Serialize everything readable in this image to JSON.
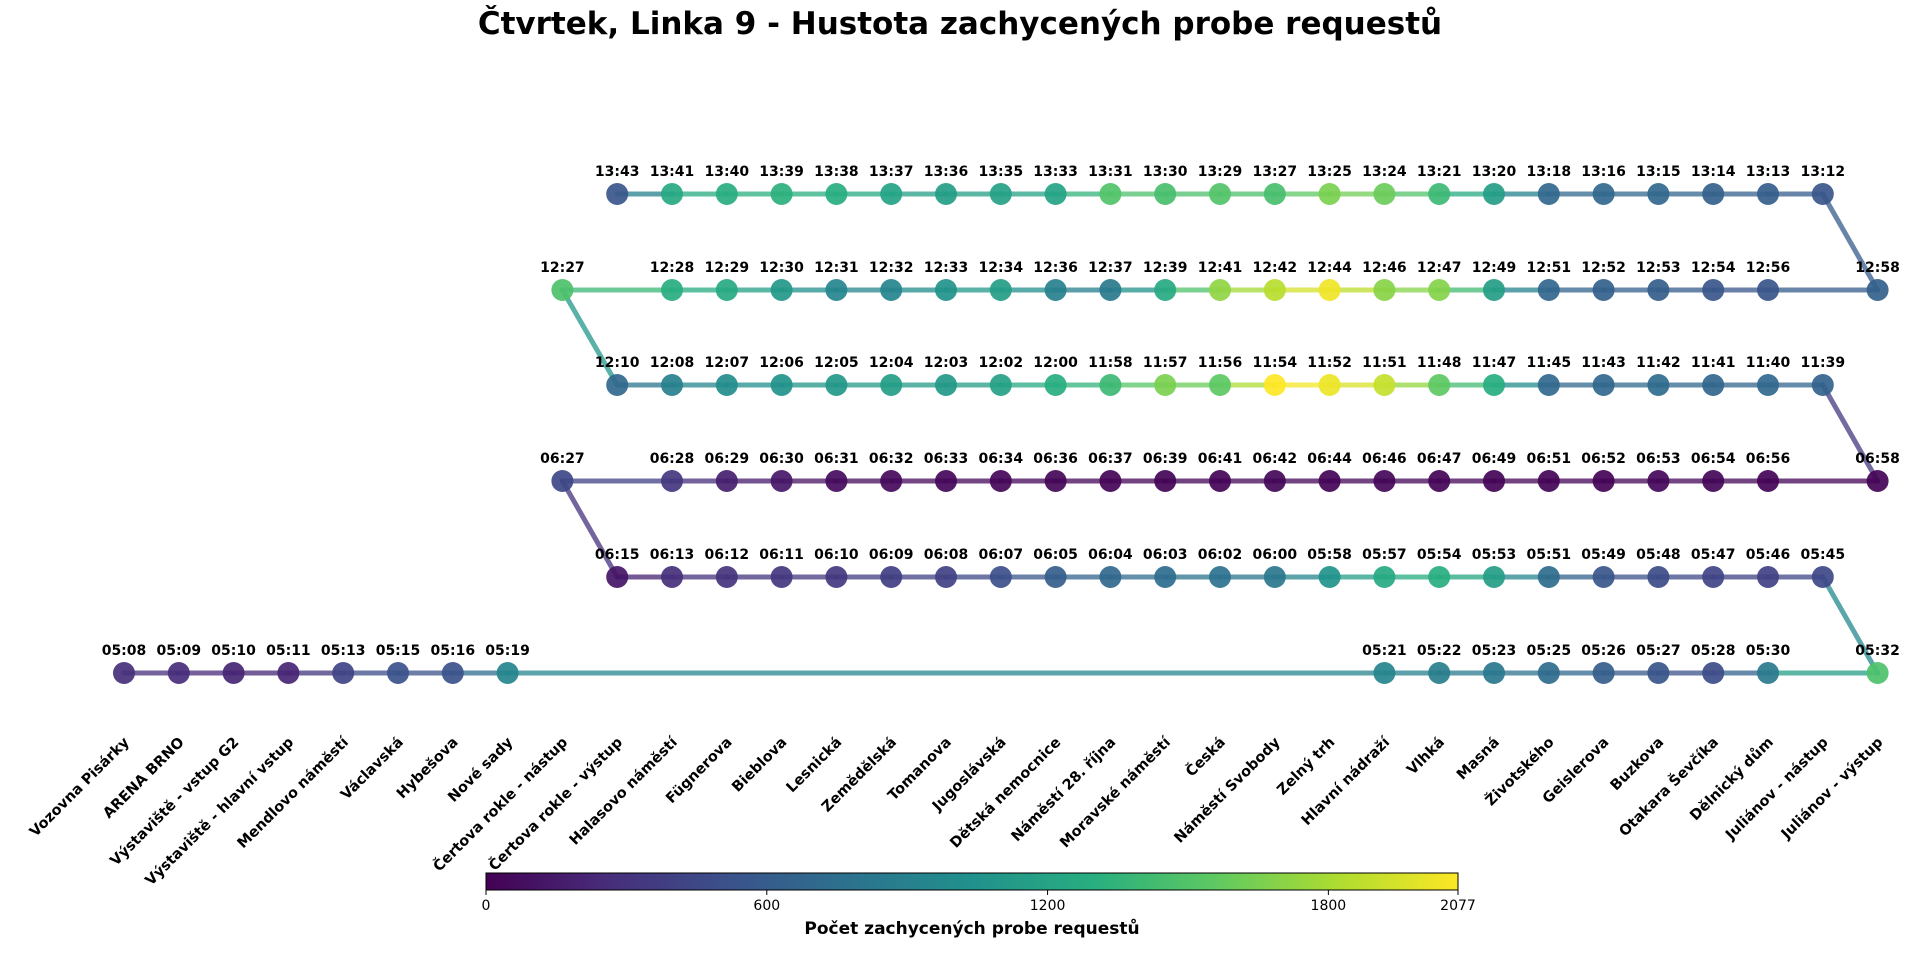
{
  "chart_data": {
    "type": "scatter",
    "title": "Čtvrtek, Linka 9 - Hustota zachycených probe requestů",
    "colormap": "viridis",
    "colorbar": {
      "label": "Počet zachycených probe requestů",
      "min": 0,
      "max": 2077,
      "ticks": [
        "0",
        "600",
        "1200",
        "1800",
        "2077"
      ]
    },
    "stops": [
      "Vozovna Pisárky",
      "ARENA BRNO",
      "Výstaviště - vstup G2",
      "Výstaviště - hlavní vstup",
      "Mendlovo náměstí",
      "Václavská",
      "Hybešova",
      "Nové sady",
      "Čertova rokle - nástup",
      "Čertova rokle - výstup",
      "Halasovo náměstí",
      "Fügnerova",
      "Bieblova",
      "Lesnická",
      "Zemědělská",
      "Tomanova",
      "Jugoslávská",
      "Dětská nemocnice",
      "Náměstí 28. října",
      "Moravské náměstí",
      "Česká",
      "Náměstí Svobody",
      "Zelný trh",
      "Hlavní nádraží",
      "Vlhká",
      "Masná",
      "Životského",
      "Geislerova",
      "Buzkova",
      "Otakara Ševčíka",
      "Dělnický dům",
      "Juliánov - nástup",
      "Juliánov - výstup"
    ],
    "trips": [
      {
        "points": [
          {
            "stop": 0,
            "time": "05:08",
            "value": 280
          },
          {
            "stop": 1,
            "time": "05:09",
            "value": 270
          },
          {
            "stop": 2,
            "time": "05:10",
            "value": 220
          },
          {
            "stop": 3,
            "time": "05:11",
            "value": 210
          },
          {
            "stop": 4,
            "time": "05:13",
            "value": 420
          },
          {
            "stop": 5,
            "time": "05:15",
            "value": 520
          },
          {
            "stop": 6,
            "time": "05:16",
            "value": 520
          },
          {
            "stop": 7,
            "time": "05:19",
            "value": 950
          },
          {
            "stop": 23,
            "time": "05:21",
            "value": 950
          },
          {
            "stop": 24,
            "time": "05:22",
            "value": 880
          },
          {
            "stop": 25,
            "time": "05:23",
            "value": 820
          },
          {
            "stop": 26,
            "time": "05:25",
            "value": 720
          },
          {
            "stop": 27,
            "time": "05:26",
            "value": 620
          },
          {
            "stop": 28,
            "time": "05:27",
            "value": 540
          },
          {
            "stop": 29,
            "time": "05:28",
            "value": 480
          },
          {
            "stop": 30,
            "time": "05:30",
            "value": 850
          },
          {
            "stop": 32,
            "time": "05:32",
            "value": 1480
          }
        ]
      },
      {
        "points": [
          {
            "stop": 31,
            "time": "05:45",
            "value": 450
          },
          {
            "stop": 30,
            "time": "05:46",
            "value": 400
          },
          {
            "stop": 29,
            "time": "05:47",
            "value": 420
          },
          {
            "stop": 28,
            "time": "05:48",
            "value": 480
          },
          {
            "stop": 27,
            "time": "05:49",
            "value": 560
          },
          {
            "stop": 26,
            "time": "05:51",
            "value": 720
          },
          {
            "stop": 25,
            "time": "05:53",
            "value": 1150
          },
          {
            "stop": 24,
            "time": "05:54",
            "value": 1300
          },
          {
            "stop": 23,
            "time": "05:57",
            "value": 1250
          },
          {
            "stop": 22,
            "time": "05:58",
            "value": 1050
          },
          {
            "stop": 21,
            "time": "06:00",
            "value": 820
          },
          {
            "stop": 20,
            "time": "06:02",
            "value": 780
          },
          {
            "stop": 19,
            "time": "06:03",
            "value": 740
          },
          {
            "stop": 18,
            "time": "06:04",
            "value": 700
          },
          {
            "stop": 17,
            "time": "06:05",
            "value": 620
          },
          {
            "stop": 16,
            "time": "06:07",
            "value": 500
          },
          {
            "stop": 15,
            "time": "06:08",
            "value": 400
          },
          {
            "stop": 14,
            "time": "06:09",
            "value": 380
          },
          {
            "stop": 13,
            "time": "06:10",
            "value": 340
          },
          {
            "stop": 12,
            "time": "06:11",
            "value": 330
          },
          {
            "stop": 11,
            "time": "06:12",
            "value": 300
          },
          {
            "stop": 10,
            "time": "06:13",
            "value": 280
          },
          {
            "stop": 9,
            "time": "06:15",
            "value": 120
          }
        ]
      },
      {
        "points": [
          {
            "stop": 8,
            "time": "06:27",
            "value": 450
          },
          {
            "stop": 10,
            "time": "06:28",
            "value": 330
          },
          {
            "stop": 11,
            "time": "06:29",
            "value": 180
          },
          {
            "stop": 12,
            "time": "06:30",
            "value": 130
          },
          {
            "stop": 13,
            "time": "06:31",
            "value": 60
          },
          {
            "stop": 14,
            "time": "06:32",
            "value": 50
          },
          {
            "stop": 15,
            "time": "06:33",
            "value": 40
          },
          {
            "stop": 16,
            "time": "06:34",
            "value": 30
          },
          {
            "stop": 17,
            "time": "06:36",
            "value": 30
          },
          {
            "stop": 18,
            "time": "06:37",
            "value": 20
          },
          {
            "stop": 19,
            "time": "06:39",
            "value": 20
          },
          {
            "stop": 20,
            "time": "06:41",
            "value": 20
          },
          {
            "stop": 21,
            "time": "06:42",
            "value": 30
          },
          {
            "stop": 22,
            "time": "06:44",
            "value": 20
          },
          {
            "stop": 23,
            "time": "06:46",
            "value": 30
          },
          {
            "stop": 24,
            "time": "06:47",
            "value": 20
          },
          {
            "stop": 25,
            "time": "06:49",
            "value": 20
          },
          {
            "stop": 26,
            "time": "06:51",
            "value": 15
          },
          {
            "stop": 27,
            "time": "06:52",
            "value": 10
          },
          {
            "stop": 28,
            "time": "06:53",
            "value": 40
          },
          {
            "stop": 29,
            "time": "06:54",
            "value": 30
          },
          {
            "stop": 30,
            "time": "06:56",
            "value": 20
          },
          {
            "stop": 32,
            "time": "06:58",
            "value": 20
          }
        ]
      },
      {
        "points": [
          {
            "stop": 31,
            "time": "11:39",
            "value": 650
          },
          {
            "stop": 30,
            "time": "11:40",
            "value": 700
          },
          {
            "stop": 29,
            "time": "11:41",
            "value": 680
          },
          {
            "stop": 28,
            "time": "11:42",
            "value": 720
          },
          {
            "stop": 27,
            "time": "11:43",
            "value": 700
          },
          {
            "stop": 26,
            "time": "11:45",
            "value": 700
          },
          {
            "stop": 25,
            "time": "11:47",
            "value": 1300
          },
          {
            "stop": 24,
            "time": "11:48",
            "value": 1550
          },
          {
            "stop": 23,
            "time": "11:51",
            "value": 1900
          },
          {
            "stop": 22,
            "time": "11:52",
            "value": 2020
          },
          {
            "stop": 21,
            "time": "11:54",
            "value": 2077
          },
          {
            "stop": 20,
            "time": "11:56",
            "value": 1550
          },
          {
            "stop": 19,
            "time": "11:57",
            "value": 1650
          },
          {
            "stop": 18,
            "time": "11:58",
            "value": 1400
          },
          {
            "stop": 17,
            "time": "12:00",
            "value": 1300
          },
          {
            "stop": 16,
            "time": "12:02",
            "value": 1180
          },
          {
            "stop": 15,
            "time": "12:03",
            "value": 1100
          },
          {
            "stop": 14,
            "time": "12:04",
            "value": 1150
          },
          {
            "stop": 13,
            "time": "12:05",
            "value": 1100
          },
          {
            "stop": 12,
            "time": "12:06",
            "value": 1050
          },
          {
            "stop": 11,
            "time": "12:07",
            "value": 1000
          },
          {
            "stop": 10,
            "time": "12:08",
            "value": 900
          },
          {
            "stop": 9,
            "time": "12:10",
            "value": 700
          }
        ]
      },
      {
        "points": [
          {
            "stop": 8,
            "time": "12:27",
            "value": 1480
          },
          {
            "stop": 10,
            "time": "12:28",
            "value": 1300
          },
          {
            "stop": 11,
            "time": "12:29",
            "value": 1250
          },
          {
            "stop": 12,
            "time": "12:30",
            "value": 1100
          },
          {
            "stop": 13,
            "time": "12:31",
            "value": 950
          },
          {
            "stop": 14,
            "time": "12:32",
            "value": 950
          },
          {
            "stop": 15,
            "time": "12:33",
            "value": 1050
          },
          {
            "stop": 16,
            "time": "12:34",
            "value": 1150
          },
          {
            "stop": 17,
            "time": "12:36",
            "value": 900
          },
          {
            "stop": 18,
            "time": "12:37",
            "value": 850
          },
          {
            "stop": 19,
            "time": "12:39",
            "value": 1250
          },
          {
            "stop": 20,
            "time": "12:41",
            "value": 1720
          },
          {
            "stop": 21,
            "time": "12:42",
            "value": 1850
          },
          {
            "stop": 22,
            "time": "12:44",
            "value": 2030
          },
          {
            "stop": 23,
            "time": "12:46",
            "value": 1700
          },
          {
            "stop": 24,
            "time": "12:47",
            "value": 1680
          },
          {
            "stop": 25,
            "time": "12:49",
            "value": 1150
          },
          {
            "stop": 26,
            "time": "12:51",
            "value": 680
          },
          {
            "stop": 27,
            "time": "12:52",
            "value": 640
          },
          {
            "stop": 28,
            "time": "12:53",
            "value": 620
          },
          {
            "stop": 29,
            "time": "12:54",
            "value": 560
          },
          {
            "stop": 30,
            "time": "12:56",
            "value": 540
          },
          {
            "stop": 32,
            "time": "12:58",
            "value": 640
          }
        ]
      },
      {
        "points": [
          {
            "stop": 31,
            "time": "13:12",
            "value": 560
          },
          {
            "stop": 30,
            "time": "13:13",
            "value": 620
          },
          {
            "stop": 29,
            "time": "13:14",
            "value": 640
          },
          {
            "stop": 28,
            "time": "13:15",
            "value": 700
          },
          {
            "stop": 27,
            "time": "13:16",
            "value": 700
          },
          {
            "stop": 26,
            "time": "13:18",
            "value": 700
          },
          {
            "stop": 25,
            "time": "13:20",
            "value": 1150
          },
          {
            "stop": 24,
            "time": "13:21",
            "value": 1400
          },
          {
            "stop": 23,
            "time": "13:24",
            "value": 1600
          },
          {
            "stop": 22,
            "time": "13:25",
            "value": 1650
          },
          {
            "stop": 21,
            "time": "13:27",
            "value": 1450
          },
          {
            "stop": 20,
            "time": "13:29",
            "value": 1500
          },
          {
            "stop": 19,
            "time": "13:30",
            "value": 1450
          },
          {
            "stop": 18,
            "time": "13:31",
            "value": 1500
          },
          {
            "stop": 17,
            "time": "13:33",
            "value": 1200
          },
          {
            "stop": 16,
            "time": "13:35",
            "value": 1180
          },
          {
            "stop": 15,
            "time": "13:36",
            "value": 1150
          },
          {
            "stop": 14,
            "time": "13:37",
            "value": 1200
          },
          {
            "stop": 13,
            "time": "13:38",
            "value": 1300
          },
          {
            "stop": 12,
            "time": "13:39",
            "value": 1320
          },
          {
            "stop": 11,
            "time": "13:40",
            "value": 1300
          },
          {
            "stop": 10,
            "time": "13:41",
            "value": 1250
          },
          {
            "stop": 9,
            "time": "13:43",
            "value": 550
          }
        ]
      }
    ]
  }
}
